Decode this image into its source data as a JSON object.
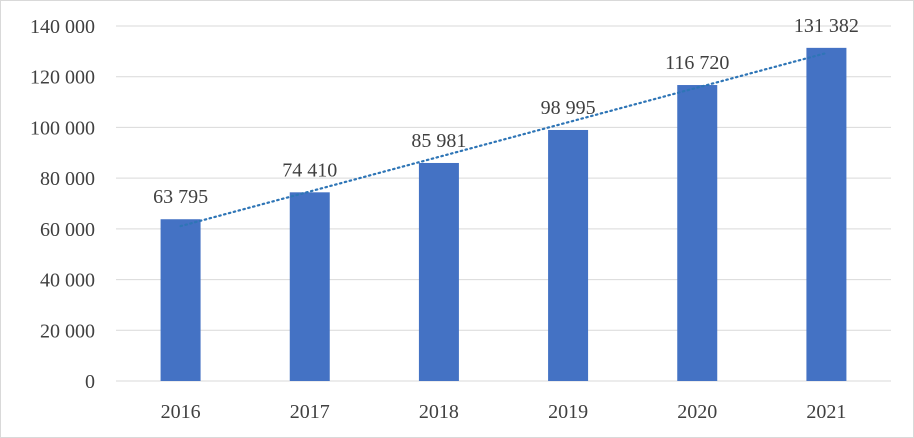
{
  "chart_data": {
    "type": "bar",
    "title": "",
    "xlabel": "",
    "ylabel": "",
    "categories": [
      "2016",
      "2017",
      "2018",
      "2019",
      "2020",
      "2021"
    ],
    "values": [
      63795,
      74410,
      85981,
      98995,
      116720,
      131382
    ],
    "value_labels": [
      "63 795",
      "74 410",
      "85 981",
      "98 995",
      "116 720",
      "131 382"
    ],
    "ylim": [
      0,
      140000
    ],
    "yticks": [
      0,
      20000,
      40000,
      60000,
      80000,
      100000,
      120000,
      140000
    ],
    "ytick_labels": [
      "0",
      "20 000",
      "40 000",
      "60 000",
      "80 000",
      "100 000",
      "120 000",
      "140 000"
    ],
    "grid": true,
    "legend": "none",
    "trendline": {
      "type": "linear",
      "style": "dotted"
    },
    "colors": {
      "bar": "#4472c4",
      "trendline": "#2e75b6",
      "grid": "#d9d9d9",
      "text": "#404040"
    }
  }
}
